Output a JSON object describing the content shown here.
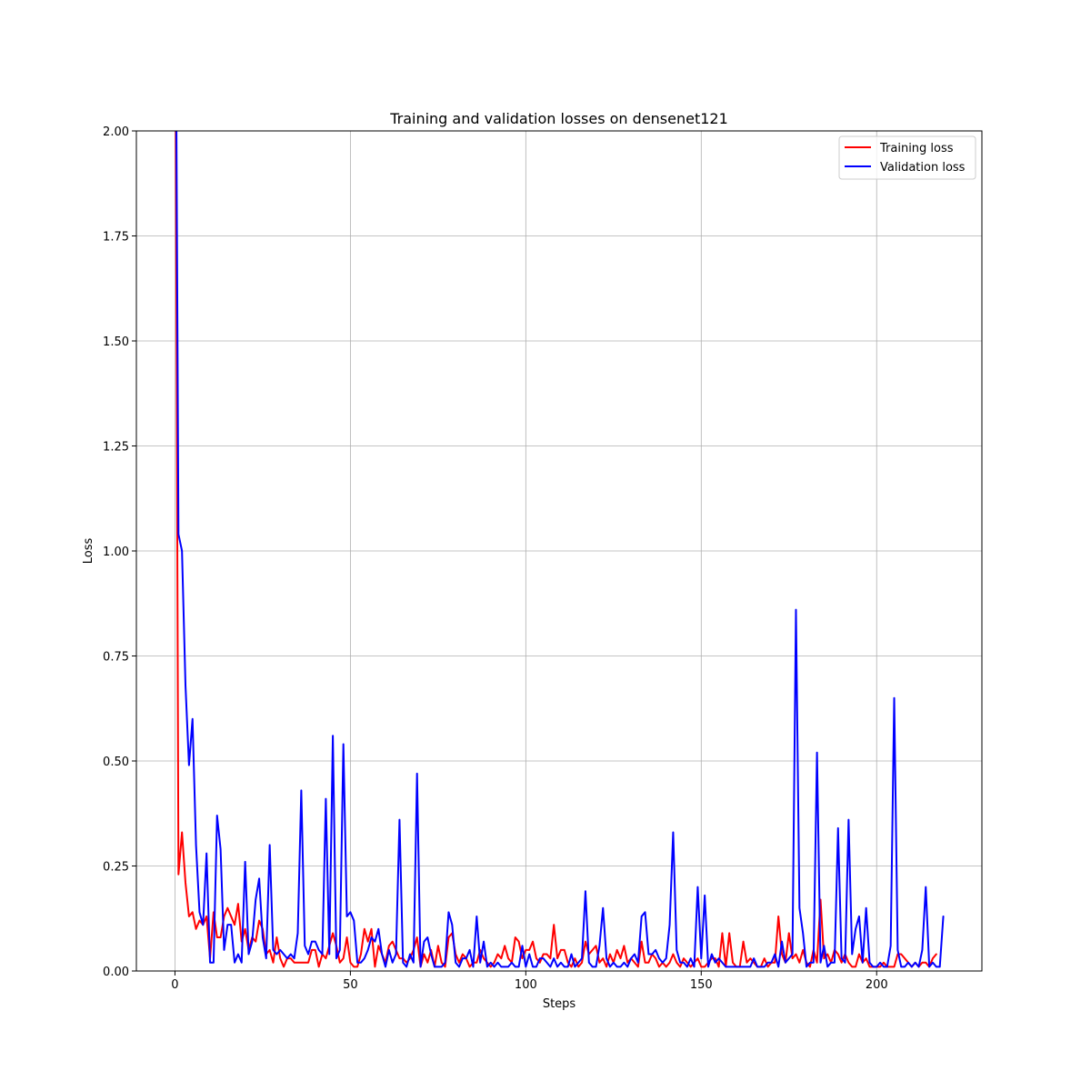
{
  "chart_data": {
    "type": "line",
    "title": "Training and validation losses on densenet121",
    "xlabel": "Steps",
    "ylabel": "Loss",
    "xlim": [
      -11,
      230
    ],
    "ylim": [
      0,
      2.0
    ],
    "xticks": [
      0,
      50,
      100,
      150,
      200
    ],
    "xtick_labels": [
      "0",
      "50",
      "100",
      "150",
      "200"
    ],
    "yticks": [
      0,
      0.25,
      0.5,
      0.75,
      1.0,
      1.25,
      1.5,
      1.75,
      2.0
    ],
    "ytick_labels": [
      "0.00",
      "0.25",
      "0.50",
      "0.75",
      "1.00",
      "1.25",
      "1.50",
      "1.75",
      "2.00"
    ],
    "grid": true,
    "legend_position": "upper right",
    "x_start": 0,
    "x_step": 1,
    "series": [
      {
        "name": "Training loss",
        "color": "#ff0000",
        "values": [
          2.6,
          0.23,
          0.33,
          0.21,
          0.13,
          0.14,
          0.1,
          0.12,
          0.11,
          0.13,
          0.03,
          0.14,
          0.08,
          0.08,
          0.13,
          0.15,
          0.13,
          0.11,
          0.16,
          0.07,
          0.1,
          0.05,
          0.08,
          0.07,
          0.12,
          0.1,
          0.04,
          0.05,
          0.02,
          0.08,
          0.03,
          0.01,
          0.03,
          0.03,
          0.02,
          0.02,
          0.02,
          0.02,
          0.02,
          0.05,
          0.05,
          0.01,
          0.04,
          0.03,
          0.06,
          0.09,
          0.06,
          0.02,
          0.03,
          0.08,
          0.02,
          0.01,
          0.01,
          0.04,
          0.1,
          0.07,
          0.1,
          0.01,
          0.06,
          0.04,
          0.02,
          0.06,
          0.07,
          0.05,
          0.03,
          0.03,
          0.02,
          0.03,
          0.05,
          0.08,
          0.01,
          0.04,
          0.02,
          0.05,
          0.01,
          0.06,
          0.02,
          0.01,
          0.08,
          0.09,
          0.04,
          0.02,
          0.04,
          0.03,
          0.01,
          0.02,
          0.02,
          0.05,
          0.03,
          0.02,
          0.01,
          0.02,
          0.04,
          0.03,
          0.06,
          0.03,
          0.02,
          0.08,
          0.07,
          0.03,
          0.05,
          0.05,
          0.07,
          0.03,
          0.02,
          0.04,
          0.04,
          0.03,
          0.11,
          0.03,
          0.05,
          0.05,
          0.02,
          0.01,
          0.03,
          0.01,
          0.02,
          0.07,
          0.04,
          0.05,
          0.06,
          0.02,
          0.03,
          0.01,
          0.04,
          0.02,
          0.05,
          0.03,
          0.06,
          0.02,
          0.03,
          0.02,
          0.01,
          0.07,
          0.02,
          0.02,
          0.04,
          0.03,
          0.01,
          0.02,
          0.01,
          0.02,
          0.04,
          0.02,
          0.01,
          0.03,
          0.02,
          0.01,
          0.02,
          0.03,
          0.01,
          0.01,
          0.02,
          0.03,
          0.03,
          0.01,
          0.09,
          0.01,
          0.09,
          0.02,
          0.01,
          0.01,
          0.07,
          0.02,
          0.03,
          0.02,
          0.01,
          0.01,
          0.03,
          0.01,
          0.02,
          0.02,
          0.13,
          0.04,
          0.02,
          0.09,
          0.03,
          0.04,
          0.02,
          0.05,
          0.02,
          0.01,
          0.05,
          0.02,
          0.17,
          0.03,
          0.04,
          0.02,
          0.05,
          0.04,
          0.02,
          0.04,
          0.02,
          0.01,
          0.01,
          0.04,
          0.02,
          0.03,
          0.01,
          0.01,
          0.01,
          0.01,
          0.02,
          0.01,
          0.01,
          0.01,
          0.04,
          0.04,
          0.03,
          0.02,
          0.01,
          0.02,
          0.01,
          0.02,
          0.02,
          0.01,
          0.03,
          0.04
        ]
      },
      {
        "name": "Validation loss",
        "color": "#0000ff",
        "values": [
          2.7,
          1.04,
          1.0,
          0.68,
          0.49,
          0.6,
          0.3,
          0.14,
          0.11,
          0.28,
          0.02,
          0.02,
          0.37,
          0.29,
          0.05,
          0.11,
          0.11,
          0.02,
          0.04,
          0.02,
          0.26,
          0.04,
          0.07,
          0.17,
          0.22,
          0.08,
          0.03,
          0.3,
          0.05,
          0.04,
          0.05,
          0.04,
          0.03,
          0.04,
          0.03,
          0.09,
          0.43,
          0.06,
          0.04,
          0.07,
          0.07,
          0.05,
          0.04,
          0.41,
          0.04,
          0.56,
          0.03,
          0.05,
          0.54,
          0.13,
          0.14,
          0.12,
          0.02,
          0.02,
          0.03,
          0.05,
          0.08,
          0.07,
          0.1,
          0.04,
          0.01,
          0.05,
          0.02,
          0.04,
          0.36,
          0.02,
          0.01,
          0.04,
          0.02,
          0.47,
          0.01,
          0.07,
          0.08,
          0.04,
          0.01,
          0.01,
          0.01,
          0.02,
          0.14,
          0.11,
          0.02,
          0.01,
          0.03,
          0.03,
          0.05,
          0.01,
          0.13,
          0.02,
          0.07,
          0.01,
          0.02,
          0.01,
          0.02,
          0.01,
          0.01,
          0.01,
          0.02,
          0.01,
          0.01,
          0.06,
          0.01,
          0.04,
          0.01,
          0.01,
          0.03,
          0.03,
          0.02,
          0.01,
          0.03,
          0.01,
          0.02,
          0.01,
          0.01,
          0.04,
          0.01,
          0.02,
          0.03,
          0.19,
          0.02,
          0.01,
          0.01,
          0.06,
          0.15,
          0.03,
          0.01,
          0.02,
          0.01,
          0.01,
          0.02,
          0.01,
          0.03,
          0.04,
          0.02,
          0.13,
          0.14,
          0.04,
          0.04,
          0.05,
          0.03,
          0.02,
          0.03,
          0.11,
          0.33,
          0.05,
          0.02,
          0.02,
          0.01,
          0.03,
          0.01,
          0.2,
          0.03,
          0.18,
          0.01,
          0.04,
          0.02,
          0.03,
          0.02,
          0.01,
          0.01,
          0.01,
          0.01,
          0.01,
          0.01,
          0.01,
          0.01,
          0.03,
          0.01,
          0.01,
          0.01,
          0.02,
          0.02,
          0.04,
          0.01,
          0.07,
          0.02,
          0.03,
          0.04,
          0.86,
          0.15,
          0.09,
          0.01,
          0.02,
          0.02,
          0.52,
          0.02,
          0.06,
          0.01,
          0.02,
          0.02,
          0.34,
          0.03,
          0.02,
          0.36,
          0.04,
          0.1,
          0.13,
          0.02,
          0.15,
          0.02,
          0.01,
          0.01,
          0.02,
          0.01,
          0.01,
          0.06,
          0.65,
          0.05,
          0.01,
          0.01,
          0.02,
          0.01,
          0.02,
          0.01,
          0.05,
          0.2,
          0.01,
          0.02,
          0.01,
          0.01,
          0.13
        ]
      }
    ]
  }
}
